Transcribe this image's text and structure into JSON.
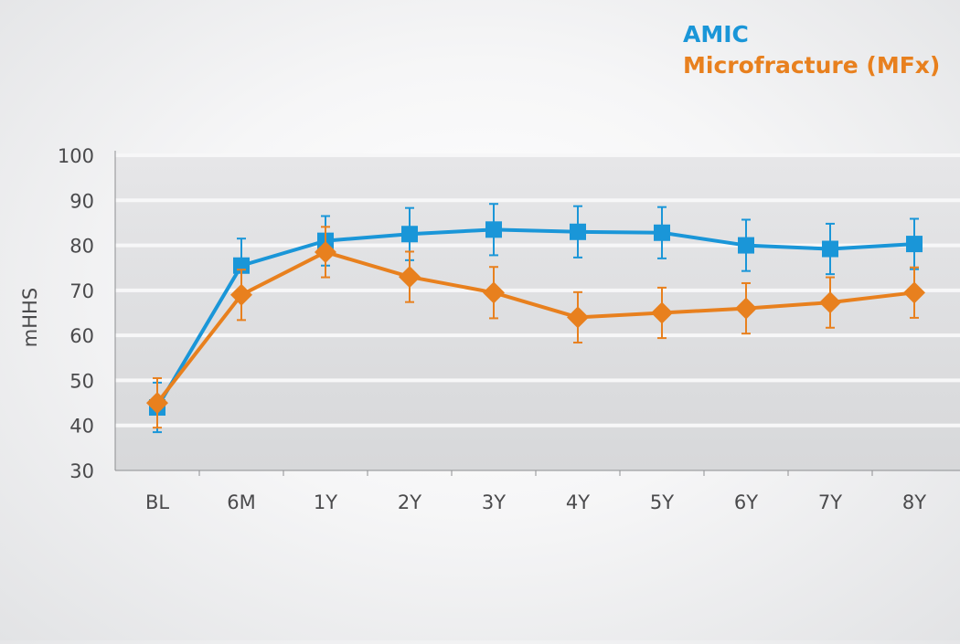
{
  "chart_data": {
    "type": "line",
    "title": "",
    "xlabel": "",
    "ylabel": "mHHS",
    "ylim": [
      30,
      100
    ],
    "yticks": [
      30,
      40,
      50,
      60,
      70,
      80,
      90,
      100
    ],
    "grid": true,
    "legend_position": "top-right",
    "categories": [
      "BL",
      "6M",
      "1Y",
      "2Y",
      "3Y",
      "4Y",
      "5Y",
      "6Y",
      "7Y",
      "8Y"
    ],
    "series": [
      {
        "name": "AMIC",
        "color": "#1a96d8",
        "marker": "square",
        "values": [
          44,
          75.5,
          81,
          82.5,
          83.5,
          83,
          82.8,
          80,
          79.2,
          80.3
        ],
        "error": [
          5.5,
          6,
          5.5,
          5.8,
          5.7,
          5.7,
          5.7,
          5.7,
          5.6,
          5.6
        ]
      },
      {
        "name": "Microfracture (MFx)",
        "color": "#e8801e",
        "marker": "diamond",
        "values": [
          45,
          69,
          78.5,
          73,
          69.5,
          64,
          65,
          66,
          67.3,
          69.5
        ],
        "error": [
          5.5,
          5.6,
          5.6,
          5.6,
          5.7,
          5.6,
          5.6,
          5.6,
          5.6,
          5.6
        ]
      }
    ]
  }
}
